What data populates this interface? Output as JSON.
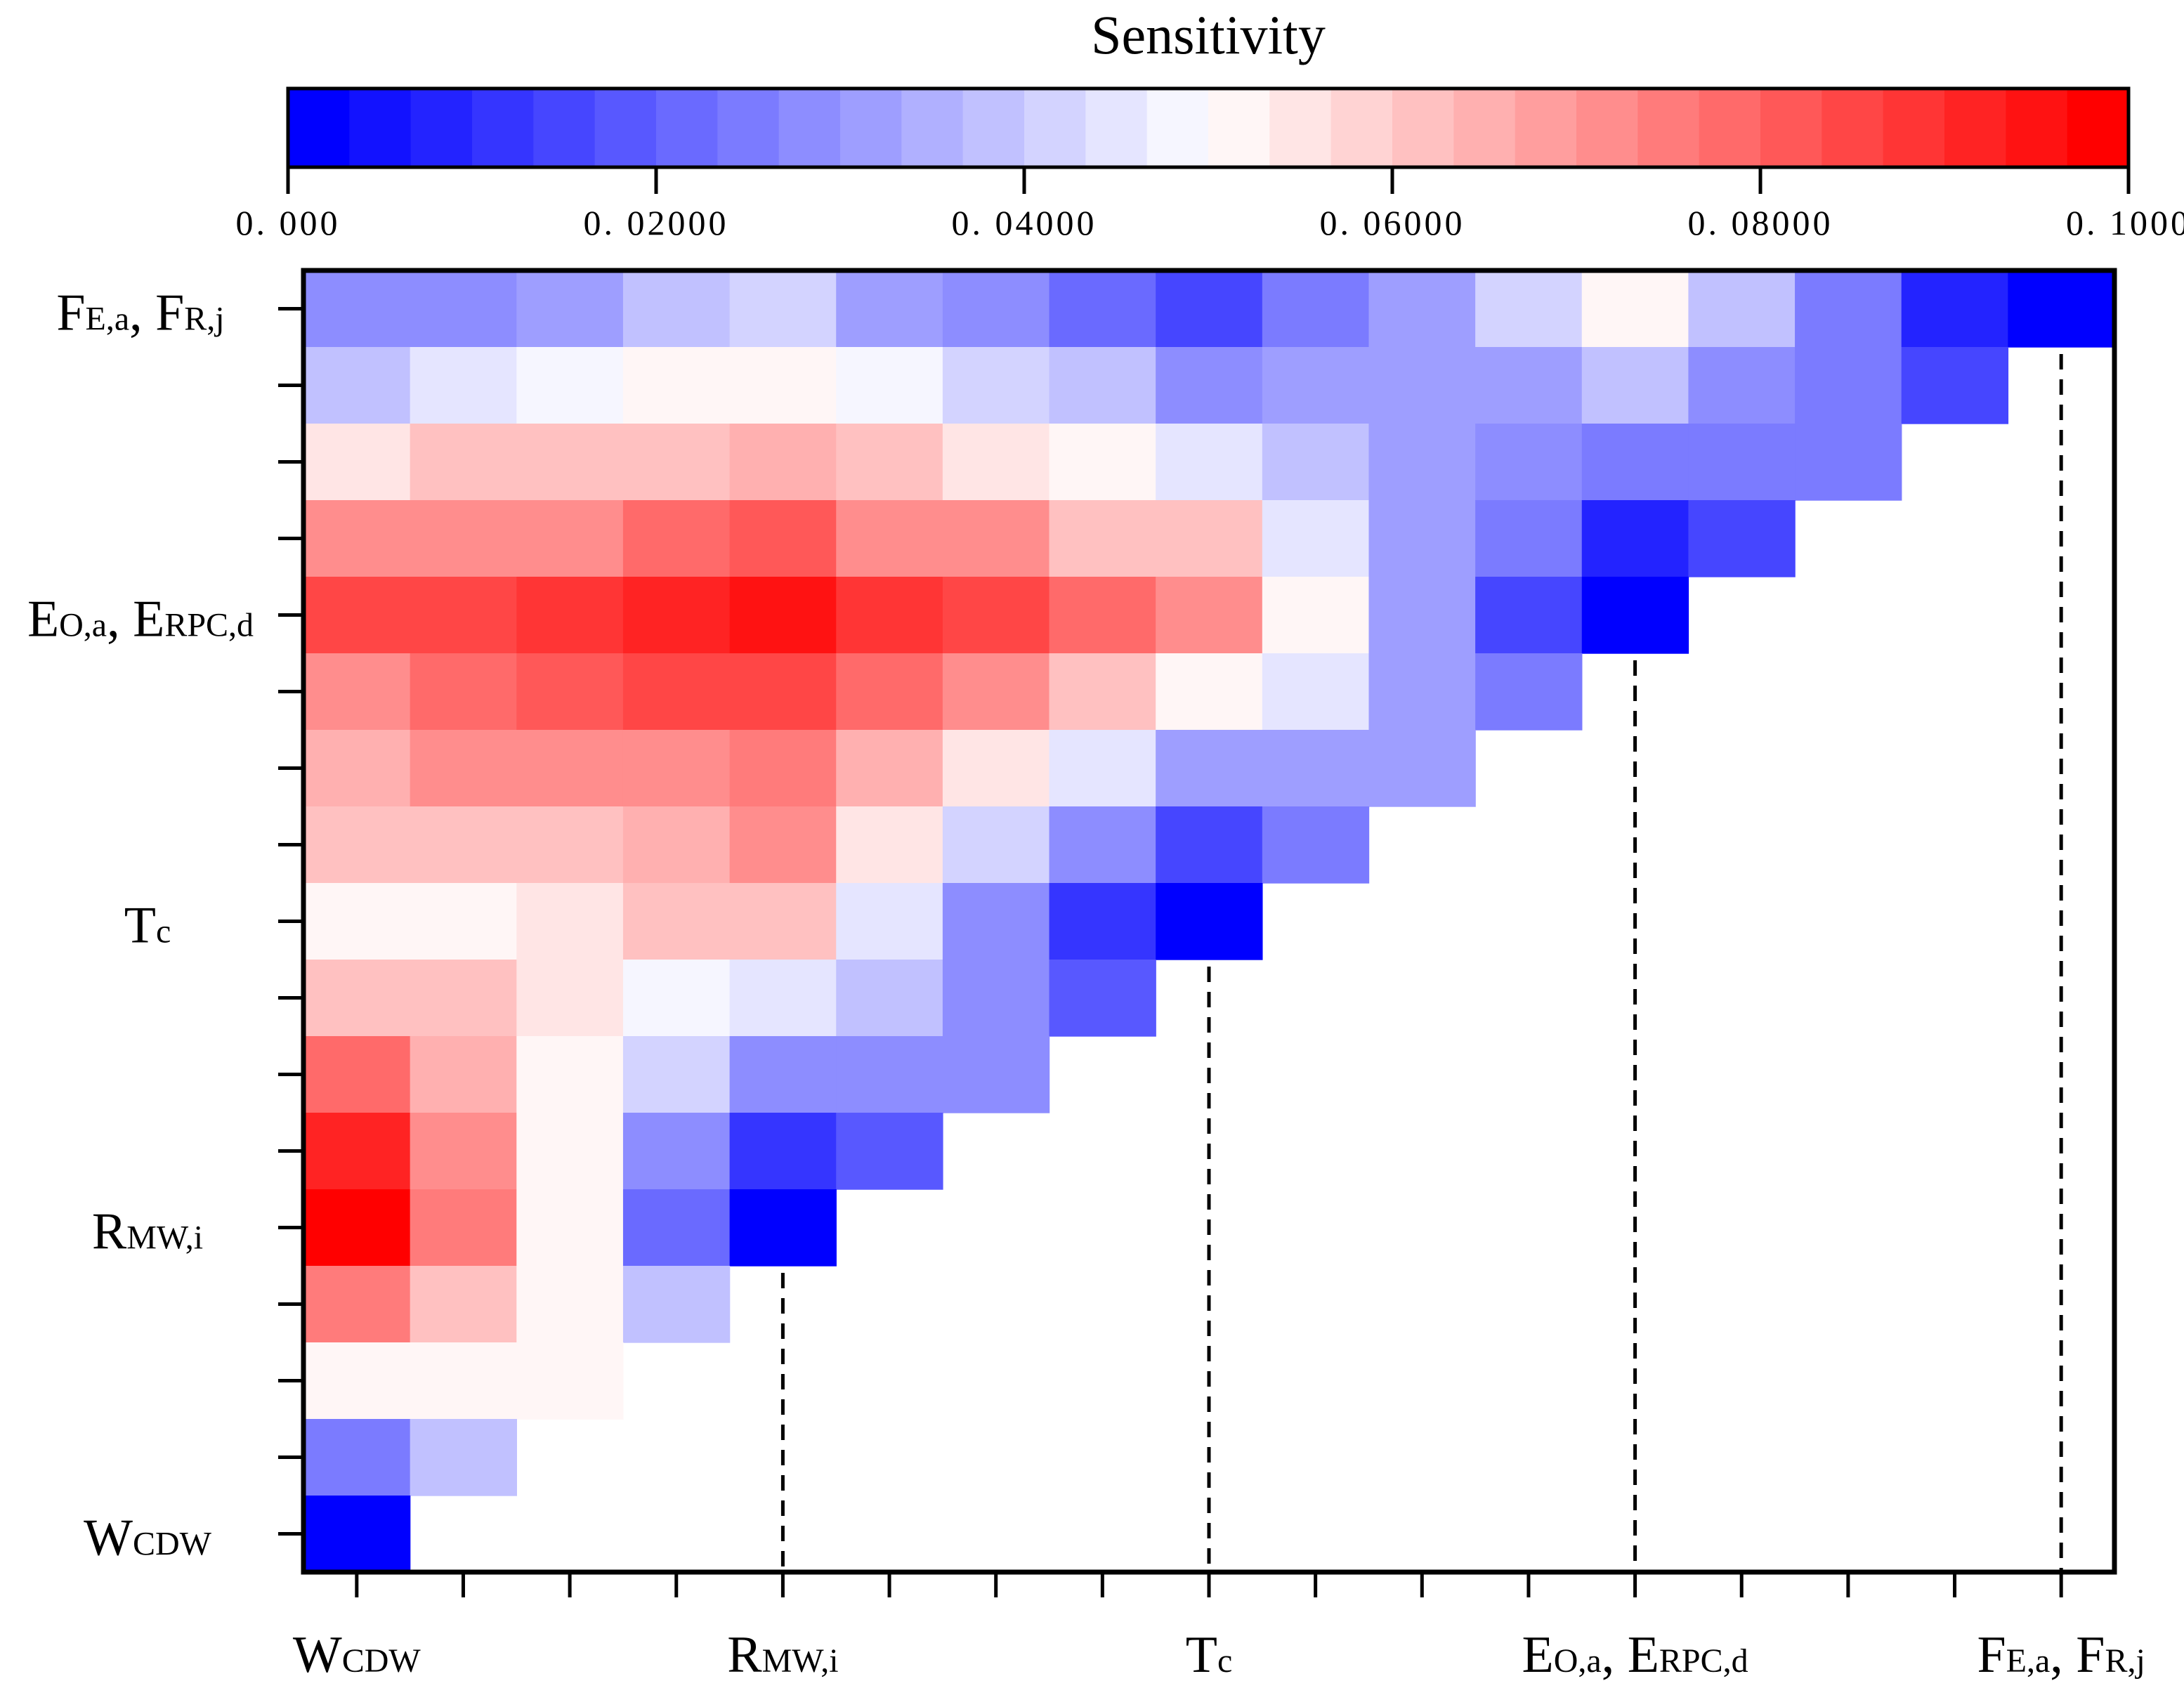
{
  "chart_data": {
    "type": "heatmap",
    "title": "Sensitivity",
    "colorbar": {
      "min": 0.0,
      "max": 0.1,
      "ticks": [
        0.0,
        0.02,
        0.04,
        0.06,
        0.08,
        0.1
      ],
      "tick_labels": [
        "0. 000",
        "0. 02000",
        "0. 04000",
        "0. 06000",
        "0. 08000",
        "0. 1000"
      ],
      "levels": 30,
      "colors": {
        "low": "#0000ff",
        "mid": "#ffffff",
        "high": "#ff0000"
      }
    },
    "x_labels": [
      {
        "main": "W",
        "sub": "CDW",
        "col": 1
      },
      {
        "main": "R",
        "sub": "MW,i",
        "col": 5
      },
      {
        "main": "T",
        "sub": "c",
        "col": 9
      },
      {
        "main": "E",
        "sub": "O,a",
        "main2": ", E",
        "sub2": "RPC,d",
        "col": 13
      },
      {
        "main": "F",
        "sub": "E,a",
        "main2": ", F",
        "sub2": "R,j",
        "col": 17
      }
    ],
    "y_labels": [
      {
        "main": "F",
        "sub": "E,a",
        "main2": ", F",
        "sub2": "R,j",
        "row": 0
      },
      {
        "main": "E",
        "sub": "O,a",
        "main2": ", E",
        "sub2": "RPC,d",
        "row": 4
      },
      {
        "main": "T",
        "sub": "c",
        "row": 8
      },
      {
        "main": "R",
        "sub": "MW,i",
        "row": 12
      },
      {
        "main": "W",
        "sub": "CDW",
        "row": 16
      }
    ],
    "n_cols": 17,
    "values": [
      [
        0.029,
        0.029,
        0.032,
        0.037,
        0.042,
        0.032,
        0.029,
        0.022,
        0.016,
        0.025,
        0.032,
        0.042,
        0.052,
        0.037,
        0.025,
        0.01,
        0.001
      ],
      [
        0.04,
        0.045,
        0.048,
        0.052,
        0.052,
        0.048,
        0.042,
        0.037,
        0.029,
        0.032,
        0.032,
        0.032,
        0.037,
        0.029,
        0.025,
        0.016
      ],
      [
        0.056,
        0.06,
        0.063,
        0.063,
        0.066,
        0.063,
        0.056,
        0.052,
        0.045,
        0.04,
        0.032,
        0.029,
        0.025,
        0.025,
        0.025
      ],
      [
        0.07,
        0.073,
        0.073,
        0.078,
        0.081,
        0.073,
        0.07,
        0.063,
        0.06,
        0.045,
        0.032,
        0.025,
        0.01,
        0.016
      ],
      [
        0.086,
        0.086,
        0.089,
        0.092,
        0.095,
        0.089,
        0.086,
        0.078,
        0.073,
        0.052,
        0.032,
        0.016,
        0.001
      ],
      [
        0.073,
        0.078,
        0.081,
        0.086,
        0.086,
        0.078,
        0.07,
        0.063,
        0.052,
        0.045,
        0.032,
        0.025
      ],
      [
        0.066,
        0.07,
        0.073,
        0.073,
        0.076,
        0.066,
        0.056,
        0.045,
        0.032,
        0.032,
        0.032
      ],
      [
        0.06,
        0.063,
        0.063,
        0.066,
        0.07,
        0.056,
        0.042,
        0.029,
        0.016,
        0.025
      ],
      [
        0.052,
        0.052,
        0.056,
        0.06,
        0.063,
        0.045,
        0.029,
        0.013,
        0.001
      ],
      [
        0.063,
        0.06,
        0.056,
        0.048,
        0.045,
        0.037,
        0.029,
        0.019
      ],
      [
        0.078,
        0.066,
        0.052,
        0.042,
        0.029,
        0.029,
        0.029
      ],
      [
        0.092,
        0.07,
        0.052,
        0.029,
        0.013,
        0.019
      ],
      [
        0.099,
        0.076,
        0.052,
        0.022,
        0.001
      ],
      [
        0.076,
        0.063,
        0.052,
        0.037
      ],
      [
        0.052,
        0.052,
        0.052
      ],
      [
        0.025,
        0.037
      ],
      [
        0.001
      ]
    ]
  }
}
